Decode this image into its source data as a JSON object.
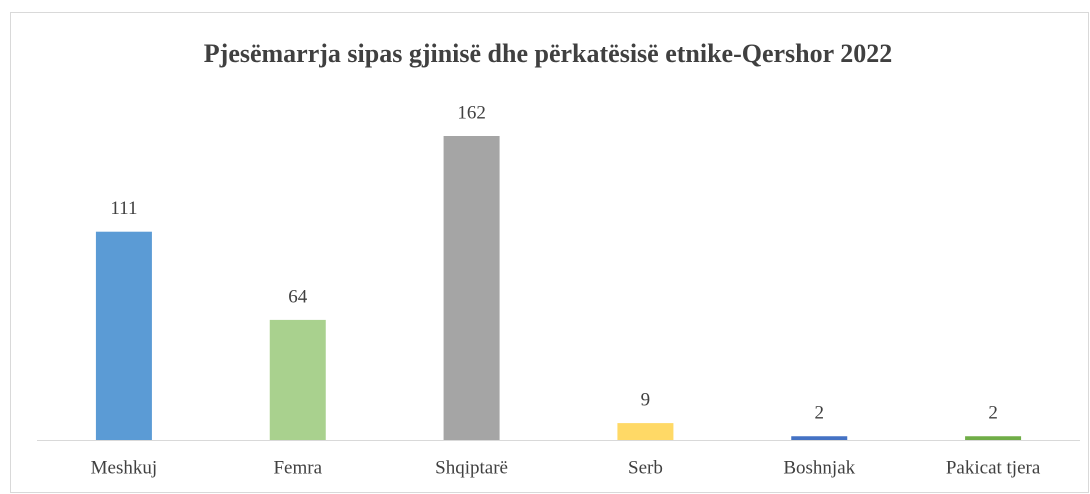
{
  "chart_data": {
    "type": "bar",
    "title": "Pjesëmarrja  sipas gjinisë dhe përkatësisë etnike-Qershor 2022",
    "categories": [
      "Meshkuj",
      "Femra",
      "Shqiptarë",
      "Serb",
      "Boshnjak",
      "Pakicat tjera"
    ],
    "values": [
      111,
      64,
      162,
      9,
      2,
      2
    ],
    "colors": [
      "#5b9bd5",
      "#a9d18e",
      "#a5a5a5",
      "#ffd966",
      "#4472c4",
      "#70ad47"
    ]
  }
}
